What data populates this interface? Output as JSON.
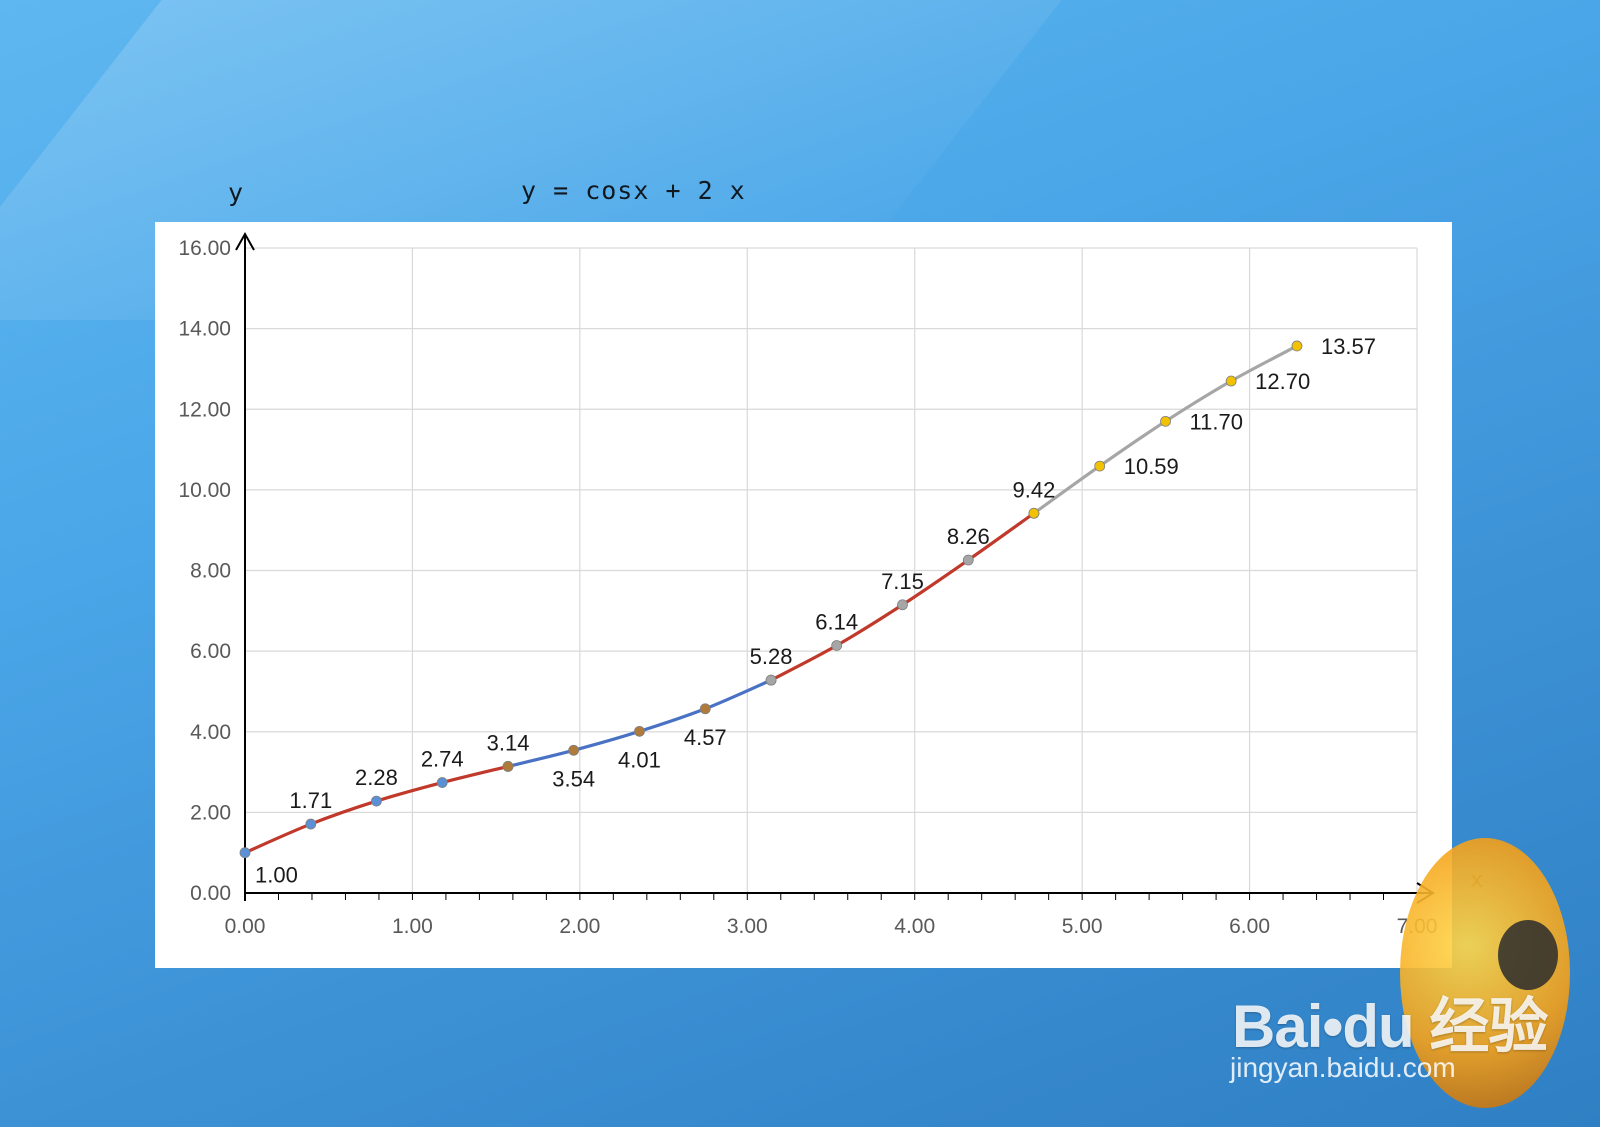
{
  "header": {
    "y_axis_title": "y",
    "chart_title": "y = cosx + 2 x",
    "x_axis_title": "x"
  },
  "watermark": {
    "brand": "Bai•du 经验",
    "url": "jingyan.baidu.com"
  },
  "chart_data": {
    "type": "line",
    "title": "y = cosx + 2 x",
    "xlabel": "x",
    "ylabel": "y",
    "xlim": [
      0,
      7
    ],
    "ylim": [
      0,
      16
    ],
    "x_ticks": [
      "0.00",
      "1.00",
      "2.00",
      "3.00",
      "4.00",
      "5.00",
      "6.00",
      "7.00"
    ],
    "y_ticks": [
      "0.00",
      "2.00",
      "4.00",
      "6.00",
      "8.00",
      "10.00",
      "12.00",
      "14.00",
      "16.00"
    ],
    "grid": true,
    "legend": "none",
    "series": [
      {
        "color": "#c0392b",
        "marker_color": "#5b8fd6",
        "x": [
          0.0,
          0.393,
          0.785,
          1.178,
          1.571
        ],
        "y": [
          1.0,
          1.71,
          2.28,
          2.74,
          3.14
        ],
        "labels": [
          "1.00",
          "1.71",
          "2.28",
          "2.74",
          "3.14"
        ]
      },
      {
        "color": "#4a72c4",
        "marker_color": "#b07a3a",
        "x": [
          1.571,
          1.963,
          2.356,
          2.749,
          3.142
        ],
        "y": [
          3.14,
          3.54,
          4.01,
          4.57,
          5.28
        ],
        "labels": [
          "",
          "3.54",
          "4.01",
          "4.57",
          "5.28"
        ]
      },
      {
        "color": "#c0392b",
        "marker_color": "#a6a6a6",
        "x": [
          3.142,
          3.534,
          3.927,
          4.32,
          4.712
        ],
        "y": [
          5.28,
          6.14,
          7.15,
          8.26,
          9.42
        ],
        "labels": [
          "",
          "6.14",
          "7.15",
          "8.26",
          "9.42"
        ]
      },
      {
        "color": "#a6a6a6",
        "marker_color": "#f2c200",
        "x": [
          4.712,
          5.105,
          5.498,
          5.89,
          6.283
        ],
        "y": [
          9.42,
          10.59,
          11.7,
          12.7,
          13.57
        ],
        "labels": [
          "",
          "10.59",
          "11.70",
          "12.70",
          "13.57"
        ]
      }
    ]
  }
}
